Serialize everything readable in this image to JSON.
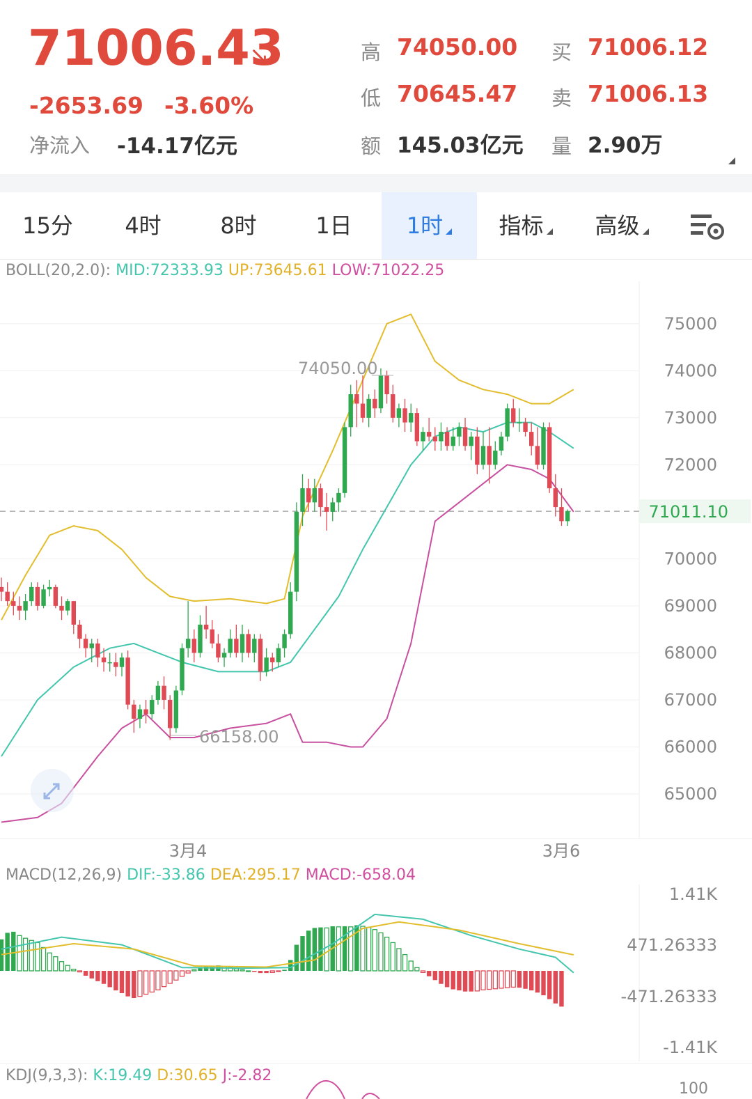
{
  "quote": {
    "price": "71006.43",
    "trend_arrow": "↘",
    "change": "-2653.69",
    "change_pct": "-3.60%",
    "netflow_label": "净流入",
    "netflow_value": "-14.17亿元",
    "high_label": "高",
    "high_value": "74050.00",
    "low_label": "低",
    "low_value": "70645.47",
    "amount_label": "额",
    "amount_value": "145.03亿元",
    "bid_label": "买",
    "bid_value": "71006.12",
    "ask_label": "卖",
    "ask_value": "71006.13",
    "volume_label": "量",
    "volume_value": "2.90万"
  },
  "tabs": [
    {
      "label": "15分",
      "active": false,
      "dropdown": false
    },
    {
      "label": "4时",
      "active": false,
      "dropdown": false
    },
    {
      "label": "8时",
      "active": false,
      "dropdown": false
    },
    {
      "label": "1日",
      "active": false,
      "dropdown": false
    },
    {
      "label": "1时",
      "active": true,
      "dropdown": true
    },
    {
      "label": "指标",
      "active": false,
      "dropdown": true
    },
    {
      "label": "高级",
      "active": false,
      "dropdown": true
    }
  ],
  "settings_icon": "chart-settings-icon",
  "boll": {
    "name": "BOLL(20,2.0):",
    "mid": "MID:72333.93",
    "up": "UP:73645.61",
    "low": "LOW:71022.25"
  },
  "macd": {
    "name": "MACD(12,26,9)",
    "dif": "DIF:-33.86",
    "dea": "DEA:295.17",
    "macd": "MACD:-658.04"
  },
  "kdj": {
    "name": "KDJ(9,3,3):",
    "k": "K:19.49",
    "d": "D:30.65",
    "j": "J:-2.82"
  },
  "colors": {
    "up": "#e04a55",
    "down": "#2fa84f",
    "boll_mid": "#43c6ad",
    "boll_up": "#e2bd2e",
    "boll_low": "#c850a0",
    "accent": "#2f7de1"
  },
  "chart_data": [
    {
      "type": "candlestick",
      "title": "",
      "y_axis_ticks": [
        "75000",
        "74000",
        "73000",
        "72000",
        "71011.10",
        "70000",
        "69000",
        "68000",
        "67000",
        "66000",
        "65000"
      ],
      "x_axis_ticks": [
        "3月4",
        "3月6"
      ],
      "ylim": [
        64200,
        75900
      ],
      "current_price": 71011.1,
      "current_price_label": "71011.10",
      "max_label": "74050.00",
      "min_label": "66158.00",
      "series_ohlc": [
        [
          69400,
          69600,
          69100,
          69300
        ],
        [
          69300,
          69500,
          69000,
          69100
        ],
        [
          69100,
          69300,
          68800,
          69000
        ],
        [
          69000,
          69200,
          68700,
          68900
        ],
        [
          68900,
          69250,
          68700,
          69100
        ],
        [
          69100,
          69500,
          69000,
          69400
        ],
        [
          69400,
          69500,
          68900,
          69000
        ],
        [
          69000,
          69450,
          68950,
          69350
        ],
        [
          69350,
          69550,
          69200,
          69400
        ],
        [
          69400,
          69450,
          68950,
          69000
        ],
        [
          69000,
          69200,
          68700,
          68900
        ],
        [
          68900,
          69150,
          68800,
          69100
        ],
        [
          69100,
          69100,
          68400,
          68600
        ],
        [
          68600,
          68700,
          68100,
          68300
        ],
        [
          68300,
          68400,
          67900,
          68100
        ],
        [
          68100,
          68300,
          67800,
          68200
        ],
        [
          68200,
          68300,
          67700,
          67900
        ],
        [
          67900,
          68100,
          67600,
          67800
        ],
        [
          67800,
          68000,
          67600,
          67800
        ],
        [
          67800,
          68000,
          67500,
          67700
        ],
        [
          67700,
          68000,
          67500,
          67900
        ],
        [
          67900,
          68050,
          66800,
          66900
        ],
        [
          66900,
          67000,
          66300,
          66600
        ],
        [
          66600,
          66900,
          66400,
          66800
        ],
        [
          66800,
          67000,
          66500,
          66700
        ],
        [
          66700,
          67100,
          66600,
          67000
        ],
        [
          67000,
          67400,
          66900,
          67300
        ],
        [
          67300,
          67500,
          66800,
          67000
        ],
        [
          67000,
          67100,
          66150,
          66400
        ],
        [
          66400,
          67300,
          66300,
          67200
        ],
        [
          67200,
          68200,
          67100,
          68100
        ],
        [
          68100,
          69100,
          67900,
          68300
        ],
        [
          68300,
          68500,
          67800,
          68000
        ],
        [
          68000,
          68800,
          67900,
          68600
        ],
        [
          68600,
          69000,
          68300,
          68500
        ],
        [
          68500,
          68700,
          68100,
          68200
        ],
        [
          68200,
          68400,
          67800,
          67900
        ],
        [
          67900,
          68100,
          67700,
          68000
        ],
        [
          68000,
          68500,
          67900,
          68300
        ],
        [
          68300,
          68600,
          67900,
          68000
        ],
        [
          68000,
          68600,
          67800,
          68400
        ],
        [
          68400,
          68500,
          67900,
          68000
        ],
        [
          68000,
          68400,
          67800,
          68300
        ],
        [
          68300,
          68400,
          67400,
          67600
        ],
        [
          67600,
          68100,
          67500,
          67900
        ],
        [
          67900,
          68000,
          67600,
          67800
        ],
        [
          67800,
          68200,
          67700,
          68100
        ],
        [
          68100,
          68500,
          67900,
          68400
        ],
        [
          68400,
          69500,
          68300,
          69300
        ],
        [
          69300,
          71200,
          69100,
          71000
        ],
        [
          71000,
          71800,
          70700,
          71500
        ],
        [
          71500,
          71700,
          71000,
          71200
        ],
        [
          71200,
          71700,
          71000,
          71500
        ],
        [
          71500,
          71600,
          70900,
          71100
        ],
        [
          71100,
          71400,
          70600,
          71000
        ],
        [
          71000,
          71300,
          70800,
          71200
        ],
        [
          71200,
          71500,
          71000,
          71400
        ],
        [
          71400,
          72900,
          71300,
          72800
        ],
        [
          72800,
          73700,
          72600,
          73500
        ],
        [
          73500,
          73800,
          72800,
          73300
        ],
        [
          73300,
          73900,
          72900,
          73000
        ],
        [
          73000,
          73500,
          72800,
          73400
        ],
        [
          73400,
          73600,
          73000,
          73200
        ],
        [
          73200,
          74050,
          73100,
          73900
        ],
        [
          73900,
          74000,
          73300,
          73500
        ],
        [
          73500,
          73700,
          72900,
          73000
        ],
        [
          73000,
          73300,
          72800,
          73200
        ],
        [
          73200,
          73400,
          72700,
          72900
        ],
        [
          72900,
          73300,
          72700,
          73100
        ],
        [
          73100,
          73200,
          72400,
          72500
        ],
        [
          72500,
          72800,
          72300,
          72700
        ],
        [
          72700,
          73000,
          72500,
          72600
        ],
        [
          72600,
          72800,
          72300,
          72500
        ],
        [
          72500,
          72900,
          72300,
          72700
        ],
        [
          72700,
          72800,
          72300,
          72400
        ],
        [
          72400,
          72800,
          72300,
          72600
        ],
        [
          72600,
          72900,
          72400,
          72800
        ],
        [
          72800,
          73000,
          72300,
          72400
        ],
        [
          72400,
          72700,
          72100,
          72600
        ],
        [
          72600,
          72800,
          71800,
          72000
        ],
        [
          72000,
          72700,
          71900,
          72400
        ],
        [
          72400,
          72800,
          71600,
          72000
        ],
        [
          72000,
          72500,
          71900,
          72300
        ],
        [
          72300,
          72700,
          72200,
          72600
        ],
        [
          72600,
          73300,
          72500,
          73200
        ],
        [
          73200,
          73400,
          72800,
          72900
        ],
        [
          72900,
          73200,
          72700,
          72900
        ],
        [
          72900,
          73000,
          72600,
          72700
        ],
        [
          72700,
          72900,
          72200,
          72400
        ],
        [
          72400,
          72800,
          71900,
          72000
        ],
        [
          72000,
          72900,
          71900,
          72800
        ],
        [
          72800,
          72900,
          71400,
          71500
        ],
        [
          71500,
          71800,
          70900,
          71100
        ],
        [
          71100,
          71500,
          70700,
          70800
        ],
        [
          70800,
          71050,
          70700,
          71011
        ]
      ],
      "series_lines": {
        "UP": [
          [
            0,
            68700
          ],
          [
            4,
            69650
          ],
          [
            8,
            70500
          ],
          [
            12,
            70700
          ],
          [
            16,
            70600
          ],
          [
            20,
            70200
          ],
          [
            24,
            69600
          ],
          [
            28,
            69200
          ],
          [
            32,
            69100
          ],
          [
            38,
            69150
          ],
          [
            44,
            69050
          ],
          [
            47,
            69150
          ],
          [
            50,
            70900
          ],
          [
            55,
            72300
          ],
          [
            60,
            73800
          ],
          [
            64,
            75000
          ],
          [
            68,
            75200
          ],
          [
            72,
            74200
          ],
          [
            76,
            73800
          ],
          [
            80,
            73600
          ],
          [
            84,
            73500
          ],
          [
            88,
            73300
          ],
          [
            91,
            73300
          ],
          [
            95,
            73600
          ]
        ],
        "MID": [
          [
            0,
            65800
          ],
          [
            6,
            67000
          ],
          [
            12,
            67700
          ],
          [
            18,
            68100
          ],
          [
            22,
            68200
          ],
          [
            26,
            68000
          ],
          [
            30,
            67800
          ],
          [
            36,
            67600
          ],
          [
            44,
            67600
          ],
          [
            48,
            67800
          ],
          [
            52,
            68500
          ],
          [
            56,
            69200
          ],
          [
            60,
            70200
          ],
          [
            64,
            71100
          ],
          [
            68,
            72000
          ],
          [
            72,
            72600
          ],
          [
            76,
            72800
          ],
          [
            80,
            72700
          ],
          [
            84,
            72900
          ],
          [
            88,
            72900
          ],
          [
            91,
            72700
          ],
          [
            95,
            72350
          ]
        ],
        "LOW": [
          [
            0,
            64400
          ],
          [
            6,
            64500
          ],
          [
            10,
            64800
          ],
          [
            16,
            65800
          ],
          [
            20,
            66400
          ],
          [
            24,
            66700
          ],
          [
            28,
            66200
          ],
          [
            32,
            66200
          ],
          [
            38,
            66400
          ],
          [
            44,
            66500
          ],
          [
            48,
            66700
          ],
          [
            50,
            66100
          ],
          [
            54,
            66100
          ],
          [
            58,
            66000
          ],
          [
            60,
            66000
          ],
          [
            64,
            66600
          ],
          [
            68,
            68200
          ],
          [
            72,
            70800
          ],
          [
            76,
            71200
          ],
          [
            80,
            71600
          ],
          [
            84,
            72000
          ],
          [
            88,
            71900
          ],
          [
            91,
            71700
          ],
          [
            95,
            71000
          ]
        ]
      }
    },
    {
      "type": "bar",
      "title": "",
      "y_axis_ticks": [
        "1.41K",
        "471.26333",
        "-471.26333",
        "-1.41K"
      ],
      "ylim": [
        -1410,
        1410
      ],
      "series": [
        {
          "name": "MACD",
          "values": [
            580,
            700,
            720,
            650,
            600,
            560,
            520,
            430,
            330,
            260,
            170,
            100,
            30,
            -20,
            -90,
            -140,
            -190,
            -240,
            -300,
            -360,
            -410,
            -470,
            -500,
            -470,
            -430,
            -390,
            -350,
            -290,
            -230,
            -170,
            -100,
            -40,
            20,
            60,
            80,
            90,
            100,
            80,
            60,
            40,
            20,
            0,
            -20,
            -40,
            -40,
            -30,
            -10,
            20,
            200,
            480,
            640,
            740,
            790,
            800,
            790,
            820,
            810,
            820,
            810,
            840,
            820,
            800,
            760,
            700,
            620,
            520,
            410,
            300,
            180,
            60,
            -30,
            -100,
            -170,
            -240,
            -300,
            -340,
            -360,
            -380,
            -380,
            -370,
            -350,
            -340,
            -330,
            -320,
            -310,
            -300,
            -310,
            -330,
            -360,
            -400,
            -450,
            -520,
            -600,
            -658
          ]
        },
        {
          "name": "DIF",
          "values": [
            [
              0,
              400
            ],
            [
              10,
              620
            ],
            [
              20,
              480
            ],
            [
              30,
              60
            ],
            [
              40,
              50
            ],
            [
              48,
              60
            ],
            [
              55,
              500
            ],
            [
              62,
              1040
            ],
            [
              70,
              950
            ],
            [
              78,
              650
            ],
            [
              86,
              400
            ],
            [
              92,
              250
            ],
            [
              95,
              -34
            ]
          ]
        },
        {
          "name": "DEA",
          "values": [
            [
              0,
              300
            ],
            [
              12,
              500
            ],
            [
              22,
              400
            ],
            [
              32,
              90
            ],
            [
              44,
              70
            ],
            [
              52,
              200
            ],
            [
              60,
              780
            ],
            [
              66,
              900
            ],
            [
              76,
              750
            ],
            [
              86,
              500
            ],
            [
              95,
              295
            ]
          ]
        }
      ]
    }
  ]
}
